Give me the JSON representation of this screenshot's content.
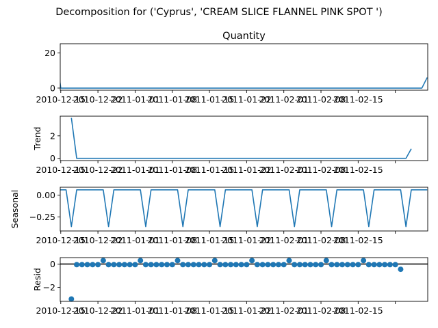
{
  "figure_title": "Decomposition for ('Cyprus', 'CREAM SLICE FLANNEL PINK SPOT ')",
  "colors": {
    "series": "#1f77b4",
    "axis": "#000000",
    "zero_line": "#000000"
  },
  "chart_data": [
    {
      "type": "line",
      "title": "Quantity",
      "ylabel": "",
      "ylim": [
        -1.2,
        25.2
      ],
      "yticks": [
        0,
        20
      ],
      "ytick_labels": [
        "0",
        "20"
      ],
      "xlim": [
        -0.1,
        69.1
      ],
      "xticks": [
        0,
        7,
        14,
        21,
        28,
        35,
        42,
        49,
        56,
        63
      ],
      "xtick_labels": [
        "2010-12-15",
        "2010-12-22",
        "2011-01-01",
        "2011-01-08",
        "2011-01-15",
        "2011-01-22",
        "2011-02-01",
        "2011-02-08",
        "2011-02-15",
        ""
      ],
      "start_offset": -1,
      "values": [
        24,
        0,
        0,
        0,
        0,
        0,
        0,
        0,
        0,
        0,
        0,
        0,
        0,
        0,
        0,
        0,
        0,
        0,
        0,
        0,
        0,
        0,
        0,
        0,
        0,
        0,
        0,
        0,
        0,
        0,
        0,
        0,
        0,
        0,
        0,
        0,
        0,
        0,
        0,
        0,
        0,
        0,
        0,
        0,
        0,
        0,
        0,
        0,
        0,
        0,
        0,
        0,
        0,
        0,
        0,
        0,
        0,
        0,
        0,
        0,
        0,
        0,
        0,
        0,
        0,
        0,
        0,
        0,
        0,
        0,
        6
      ]
    },
    {
      "type": "line",
      "title": "",
      "ylabel": "Trend",
      "ylim": [
        -0.2,
        3.75
      ],
      "yticks": [
        0,
        2
      ],
      "ytick_labels": [
        "0",
        "2"
      ],
      "xlim": [
        -0.1,
        69.1
      ],
      "xticks": [
        0,
        7,
        14,
        21,
        28,
        35,
        42,
        49,
        56,
        63
      ],
      "xtick_labels": [
        "2010-12-15",
        "2010-12-22",
        "2011-01-01",
        "2011-01-08",
        "2011-01-15",
        "2011-01-22",
        "2011-02-01",
        "2011-02-08",
        "2011-02-15",
        ""
      ],
      "start_offset": 2,
      "values": [
        3.6,
        0,
        0,
        0,
        0,
        0,
        0,
        0,
        0,
        0,
        0,
        0,
        0,
        0,
        0,
        0,
        0,
        0,
        0,
        0,
        0,
        0,
        0,
        0,
        0,
        0,
        0,
        0,
        0,
        0,
        0,
        0,
        0,
        0,
        0,
        0,
        0,
        0,
        0,
        0,
        0,
        0,
        0,
        0,
        0,
        0,
        0,
        0,
        0,
        0,
        0,
        0,
        0,
        0,
        0,
        0,
        0,
        0,
        0,
        0,
        0,
        0,
        0,
        0,
        0.85
      ]
    },
    {
      "type": "line",
      "title": "",
      "ylabel": "Seasonal",
      "ylim": [
        -0.41,
        0.09
      ],
      "yticks": [
        0.0,
        -0.25
      ],
      "ytick_labels": [
        "0.00",
        "−0.25"
      ],
      "xlim": [
        -0.1,
        69.1
      ],
      "xticks": [
        0,
        7,
        14,
        21,
        28,
        35,
        42,
        49,
        56,
        63
      ],
      "xtick_labels": [
        "2010-12-15",
        "2010-12-22",
        "2011-01-01",
        "2011-01-08",
        "2011-01-15",
        "2011-01-22",
        "2011-02-01",
        "2011-02-08",
        "2011-02-15",
        ""
      ],
      "start_offset": -1,
      "values": [
        0.06,
        0.06,
        0.06,
        -0.36,
        0.06,
        0.06,
        0.06,
        0.06,
        0.06,
        0.06,
        -0.36,
        0.06,
        0.06,
        0.06,
        0.06,
        0.06,
        0.06,
        -0.36,
        0.06,
        0.06,
        0.06,
        0.06,
        0.06,
        0.06,
        -0.36,
        0.06,
        0.06,
        0.06,
        0.06,
        0.06,
        0.06,
        -0.36,
        0.06,
        0.06,
        0.06,
        0.06,
        0.06,
        0.06,
        -0.36,
        0.06,
        0.06,
        0.06,
        0.06,
        0.06,
        0.06,
        -0.36,
        0.06,
        0.06,
        0.06,
        0.06,
        0.06,
        0.06,
        -0.36,
        0.06,
        0.06,
        0.06,
        0.06,
        0.06,
        0.06,
        -0.36,
        0.06,
        0.06,
        0.06,
        0.06,
        0.06,
        0.06,
        -0.36,
        0.06,
        0.06,
        0.06,
        0.06
      ]
    },
    {
      "type": "scatter",
      "title": "",
      "ylabel": "Resid",
      "ylim": [
        -3.2,
        0.55
      ],
      "yticks": [
        0,
        -2
      ],
      "ytick_labels": [
        "0",
        "−2"
      ],
      "xlim": [
        -0.1,
        69.1
      ],
      "xticks": [
        0,
        7,
        14,
        21,
        28,
        35,
        42,
        49,
        56,
        63
      ],
      "xtick_labels": [
        "2010-12-15",
        "2010-12-22",
        "2011-01-01",
        "2011-01-08",
        "2011-01-15",
        "2011-01-22",
        "2011-02-01",
        "2011-02-08",
        "2011-02-15",
        ""
      ],
      "start_offset": 2,
      "zero_line": true,
      "values": [
        -3.0,
        -0.05,
        -0.05,
        -0.05,
        -0.05,
        -0.05,
        0.3,
        -0.05,
        -0.05,
        -0.05,
        -0.05,
        -0.05,
        -0.05,
        0.3,
        -0.05,
        -0.05,
        -0.05,
        -0.05,
        -0.05,
        -0.05,
        0.3,
        -0.05,
        -0.05,
        -0.05,
        -0.05,
        -0.05,
        -0.05,
        0.3,
        -0.05,
        -0.05,
        -0.05,
        -0.05,
        -0.05,
        -0.05,
        0.3,
        -0.05,
        -0.05,
        -0.05,
        -0.05,
        -0.05,
        -0.05,
        0.3,
        -0.05,
        -0.05,
        -0.05,
        -0.05,
        -0.05,
        -0.05,
        0.3,
        -0.05,
        -0.05,
        -0.05,
        -0.05,
        -0.05,
        -0.05,
        0.3,
        -0.05,
        -0.05,
        -0.05,
        -0.05,
        -0.05,
        -0.05,
        -0.45
      ]
    }
  ]
}
